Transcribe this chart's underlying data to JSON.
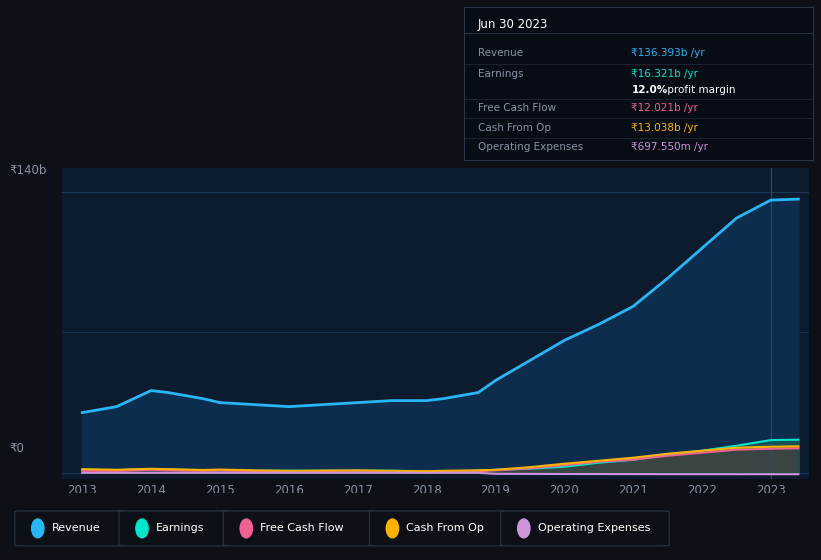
{
  "background_color": "#0d1117",
  "plot_bg_color": "#0d1b2e",
  "years": [
    2013,
    2013.5,
    2014,
    2014.25,
    2014.75,
    2015,
    2015.5,
    2016,
    2016.5,
    2017,
    2017.5,
    2018,
    2018.25,
    2018.75,
    2019,
    2019.5,
    2020,
    2020.5,
    2021,
    2021.5,
    2022,
    2022.5,
    2023,
    2023.4
  ],
  "revenue": [
    30,
    33,
    41,
    40,
    37,
    35,
    34,
    33,
    34,
    35,
    36,
    36,
    37,
    40,
    46,
    56,
    66,
    74,
    83,
    97,
    112,
    127,
    136,
    136.5
  ],
  "earnings": [
    1.5,
    1.3,
    1.8,
    1.6,
    1.3,
    1.2,
    1.0,
    1.0,
    1.0,
    1.0,
    1.0,
    0.6,
    0.8,
    1.0,
    1.5,
    2.0,
    3.0,
    5.0,
    6.5,
    9.0,
    11.0,
    13.5,
    16.3,
    16.5
  ],
  "free_cash_flow": [
    1.0,
    0.9,
    1.5,
    1.2,
    0.9,
    1.1,
    0.8,
    0.7,
    0.8,
    0.8,
    0.6,
    0.3,
    0.5,
    0.8,
    1.2,
    2.2,
    3.8,
    5.5,
    6.5,
    8.5,
    10.0,
    11.5,
    12.0,
    12.2
  ],
  "cash_from_op": [
    1.8,
    1.5,
    2.0,
    1.8,
    1.4,
    1.6,
    1.2,
    1.0,
    1.1,
    1.2,
    1.0,
    0.8,
    1.0,
    1.2,
    1.5,
    2.8,
    4.5,
    6.0,
    7.5,
    9.5,
    11.0,
    12.5,
    13.0,
    13.2
  ],
  "op_expenses": [
    0.0,
    0.0,
    0.0,
    0.0,
    0.0,
    0.0,
    0.0,
    0.0,
    0.0,
    0.0,
    0.0,
    0.0,
    0.0,
    0.0,
    -0.5,
    -0.55,
    -0.6,
    -0.62,
    -0.65,
    -0.67,
    -0.68,
    -0.69,
    -0.697,
    -0.7
  ],
  "revenue_color": "#29b6f6",
  "earnings_color": "#00e5cc",
  "fcf_color": "#f06292",
  "cashop_color": "#ffb300",
  "opexp_color": "#ce93d8",
  "revenue_fill": "#0d2d4e",
  "earnings_fill": "#005f55",
  "fcf_fill": "#7b1040",
  "cashop_fill": "#7a5c00",
  "gray_fill": "#4a5568",
  "ylim_min": -3,
  "ylim_max": 152,
  "xlabel_years": [
    2013,
    2014,
    2015,
    2016,
    2017,
    2018,
    2019,
    2020,
    2021,
    2022,
    2023
  ],
  "grid_color": "#1e3a5f",
  "text_color": "#8892a4",
  "tick_label_color": "#8892a4",
  "box_title": "Jun 30 2023",
  "box_bg": "#080c14",
  "box_border": "#2a3545",
  "box_rows": [
    {
      "label": "Revenue",
      "value": "₹136.393b /yr",
      "value_color": "#29b6f6"
    },
    {
      "label": "Earnings",
      "value": "₹16.321b /yr",
      "value_color": "#00e5cc"
    },
    {
      "label": "",
      "value": "12.0% profit margin",
      "value_color": "#ffffff"
    },
    {
      "label": "Free Cash Flow",
      "value": "₹12.021b /yr",
      "value_color": "#f06292"
    },
    {
      "label": "Cash From Op",
      "value": "₹13.038b /yr",
      "value_color": "#ffb300"
    },
    {
      "label": "Operating Expenses",
      "value": "₹697.550m /yr",
      "value_color": "#ce93d8"
    }
  ],
  "legend_items": [
    {
      "label": "Revenue",
      "color": "#29b6f6"
    },
    {
      "label": "Earnings",
      "color": "#00e5cc"
    },
    {
      "label": "Free Cash Flow",
      "color": "#f06292"
    },
    {
      "label": "Cash From Op",
      "color": "#ffb300"
    },
    {
      "label": "Operating Expenses",
      "color": "#ce93d8"
    }
  ],
  "y140b_label": "₹140b",
  "y0_label": "₹0"
}
